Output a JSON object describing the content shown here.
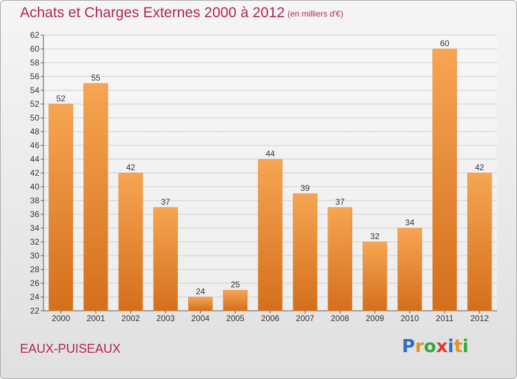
{
  "colors": {
    "accent": "#b3245a",
    "bar_light": "#f6a552",
    "bar_dark": "#d46f1c",
    "grid": "#cfcfcf"
  },
  "header": {
    "title": "Achats et Charges Externes 2000 à 2012",
    "subtitle": "(en milliers d'€)"
  },
  "footer": {
    "commune": "EAUX-PUISEAUX",
    "logo_text": "Proxiti",
    "logo_letters": [
      {
        "ch": "P",
        "color": "#2b6cc4"
      },
      {
        "ch": "r",
        "color": "#e8901a"
      },
      {
        "ch": "o",
        "color": "#39a63a"
      },
      {
        "ch": "x",
        "color": "#e03a2f"
      },
      {
        "ch": "i",
        "color": "#2b6cc4"
      },
      {
        "ch": "t",
        "color": "#e8901a"
      },
      {
        "ch": "i",
        "color": "#39a63a"
      }
    ]
  },
  "chart_data": {
    "type": "bar",
    "title": "Achats et Charges Externes 2000 à 2012",
    "subtitle": "(en milliers d'€)",
    "categories": [
      "2000",
      "2001",
      "2002",
      "2003",
      "2004",
      "2005",
      "2006",
      "2007",
      "2008",
      "2009",
      "2010",
      "2011",
      "2012"
    ],
    "values": [
      52,
      55,
      42,
      37,
      24,
      25,
      44,
      39,
      37,
      32,
      34,
      60,
      42
    ],
    "ylim": [
      22,
      62
    ],
    "ytick_step": 2,
    "xlabel": "",
    "ylabel": "",
    "grid": true,
    "legend": "none"
  }
}
